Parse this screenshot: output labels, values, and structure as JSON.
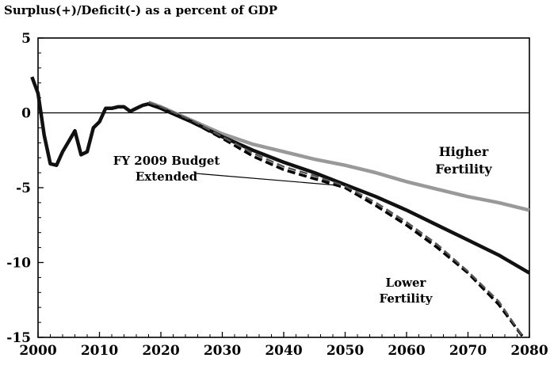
{
  "chart_data": {
    "type": "line",
    "title": "Surplus(+)/Deficit(-) as a percent of GDP",
    "xlabel": "",
    "ylabel": "",
    "xlim": [
      2000,
      2080
    ],
    "ylim": [
      -15,
      5
    ],
    "x_ticks": [
      2000,
      2010,
      2020,
      2030,
      2040,
      2050,
      2060,
      2070,
      2080
    ],
    "y_ticks": [
      5,
      0,
      -5,
      -10,
      -15
    ],
    "reference_line": 0,
    "grid": false,
    "legend": "none",
    "annotations": [
      {
        "lines": [
          "FY 2009 Budget",
          "Extended"
        ],
        "series": 2
      },
      {
        "lines": [
          "Higher",
          "Fertility"
        ],
        "series": 1
      },
      {
        "lines": [
          "Lower",
          "Fertility"
        ],
        "series": 3
      }
    ],
    "series": [
      {
        "color": "#111111",
        "dash": "solid",
        "width": 4.5,
        "x": [
          1999,
          2000,
          2001,
          2002,
          2003,
          2004,
          2005,
          2006,
          2007,
          2008,
          2009,
          2010,
          2011,
          2012,
          2013,
          2014,
          2015,
          2016,
          2017,
          2018,
          2020,
          2025,
          2030,
          2035,
          2040,
          2045,
          2050,
          2055,
          2060,
          2065,
          2070,
          2075,
          2080
        ],
        "y": [
          2.4,
          1.3,
          -1.5,
          -3.4,
          -3.5,
          -2.6,
          -1.9,
          -1.2,
          -2.8,
          -2.6,
          -1.0,
          -0.6,
          0.3,
          0.3,
          0.4,
          0.4,
          0.1,
          0.3,
          0.5,
          0.6,
          0.3,
          -0.6,
          -1.6,
          -2.5,
          -3.3,
          -4.0,
          -4.8,
          -5.6,
          -6.5,
          -7.5,
          -8.5,
          -9.5,
          -10.7
        ]
      },
      {
        "color": "#999999",
        "dash": "solid",
        "width": 4.5,
        "x": [
          2018,
          2020,
          2025,
          2030,
          2035,
          2040,
          2045,
          2050,
          2055,
          2060,
          2065,
          2070,
          2075,
          2080
        ],
        "y": [
          0.7,
          0.4,
          -0.5,
          -1.4,
          -2.1,
          -2.6,
          -3.1,
          -3.5,
          -4.0,
          -4.6,
          -5.1,
          -5.6,
          -6.0,
          -6.5
        ]
      },
      {
        "color": "#000000",
        "dash": "dashed",
        "width": 3.5,
        "x": [
          2018,
          2020,
          2025,
          2030,
          2035,
          2040,
          2045,
          2050,
          2055,
          2060,
          2065,
          2070,
          2075,
          2079
        ],
        "y": [
          0.6,
          0.3,
          -0.6,
          -1.7,
          -2.9,
          -3.8,
          -4.4,
          -5.0,
          -6.2,
          -7.5,
          -9.0,
          -10.7,
          -12.8,
          -15.0
        ]
      },
      {
        "color": "#555555",
        "dash": "dashed",
        "width": 2.5,
        "x": [
          2018,
          2020,
          2025,
          2030,
          2035,
          2040,
          2045,
          2050,
          2055,
          2060,
          2065,
          2070,
          2075,
          2079
        ],
        "y": [
          0.7,
          0.4,
          -0.5,
          -1.6,
          -2.7,
          -3.6,
          -4.2,
          -4.9,
          -6.0,
          -7.3,
          -8.8,
          -10.6,
          -12.6,
          -15.0
        ]
      }
    ]
  }
}
